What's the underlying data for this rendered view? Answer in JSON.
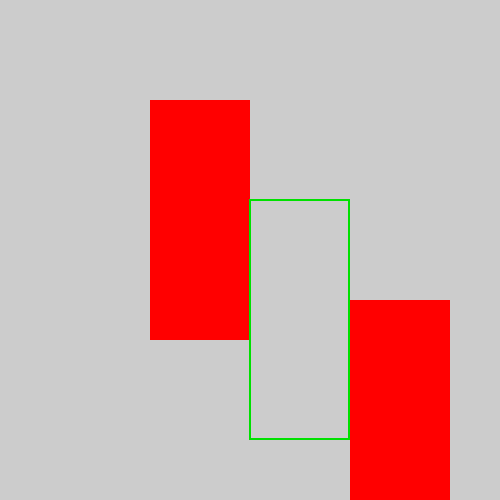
{
  "colors": {
    "background": "#cccccc",
    "fill_red": "#ff0000",
    "outline_green": "#00e000"
  }
}
